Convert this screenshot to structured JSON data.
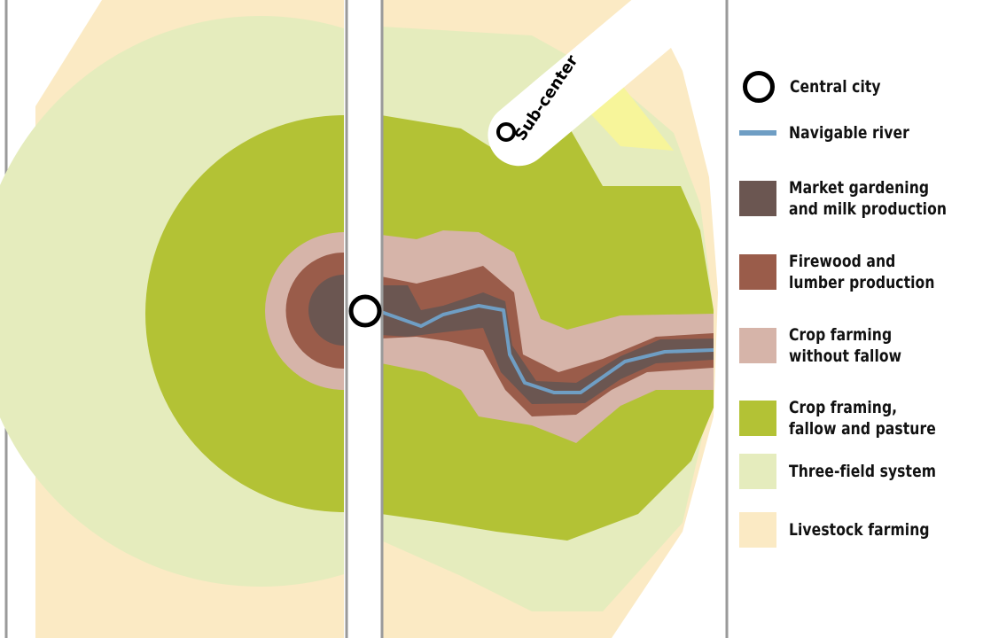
{
  "map": {
    "subcenter_label": "Sub-center"
  },
  "legend": {
    "items": [
      {
        "key": "central-city",
        "label": "Central city",
        "symbol": "circle",
        "color": "#000000"
      },
      {
        "key": "navigable-river",
        "label": "Navigable river",
        "symbol": "line",
        "color": "#6f9ec4"
      },
      {
        "key": "market-gardening",
        "label": "Market gardening and milk production",
        "symbol": "swatch",
        "color": "#6b5651"
      },
      {
        "key": "firewood-lumber",
        "label": "Firewood and lumber production",
        "symbol": "swatch",
        "color": "#9a5c4a"
      },
      {
        "key": "crop-without-fallow",
        "label": "Crop farming without fallow",
        "symbol": "swatch",
        "color": "#d6b4a9"
      },
      {
        "key": "crop-fallow-pasture",
        "label": "Crop framing, fallow and pasture",
        "symbol": "swatch",
        "color": "#b3c235"
      },
      {
        "key": "three-field",
        "label": "Three-field system",
        "symbol": "swatch",
        "color": "#e5ecbd"
      },
      {
        "key": "livestock",
        "label": "Livestock farming",
        "symbol": "swatch",
        "color": "#fbeac4"
      }
    ]
  },
  "colors": {
    "livestock": "#fbeac4",
    "three_field": "#e5ecbd",
    "crop_fallow": "#b3c235",
    "crop_no_fallow": "#d6b4a9",
    "firewood": "#9a5c4a",
    "market": "#6b5651",
    "river": "#6f9ec4",
    "yellow_patch": "#f7f59a",
    "frame_line": "#9a9a9a"
  }
}
